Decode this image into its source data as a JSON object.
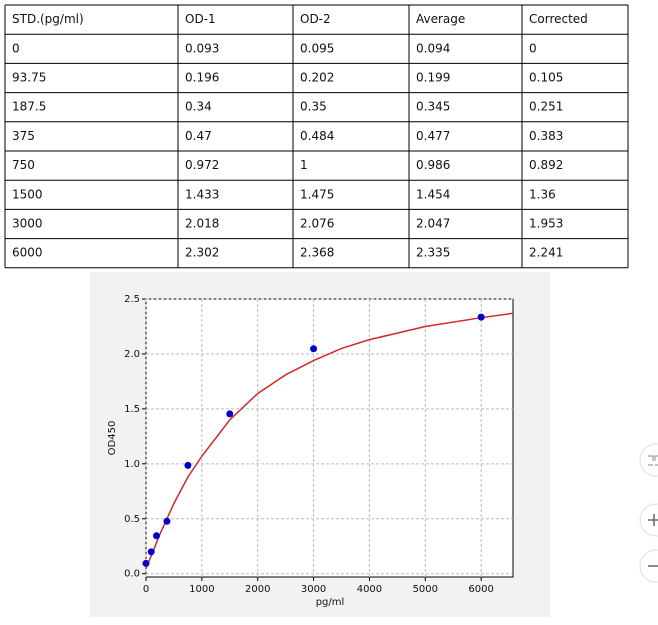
{
  "table": {
    "header": [
      "STD.(pg/ml)",
      "OD-1",
      "OD-2",
      "Average",
      "Corrected"
    ],
    "rows": [
      [
        "0",
        "0.093",
        "0.095",
        "0.094",
        "0"
      ],
      [
        "93.75",
        "0.196",
        "0.202",
        "0.199",
        "0.105"
      ],
      [
        "187.5",
        "0.34",
        "0.35",
        "0.345",
        "0.251"
      ],
      [
        "375",
        "0.47",
        "0.484",
        "0.477",
        "0.383"
      ],
      [
        "750",
        "0.972",
        "1",
        "0.986",
        "0.892"
      ],
      [
        "1500",
        "1.433",
        "1.475",
        "1.454",
        "1.36"
      ],
      [
        "3000",
        "2.018",
        "2.076",
        "2.047",
        "1.953"
      ],
      [
        "6000",
        "2.302",
        "2.368",
        "2.335",
        "2.241"
      ]
    ]
  },
  "chart_data": {
    "type": "scatter",
    "x_label": "pg/ml",
    "y_label": "OD450",
    "series": [
      {
        "type": "scatter",
        "color": "#0000cc",
        "x": [
          0,
          93.75,
          187.5,
          375,
          750,
          1500,
          3000,
          6000
        ],
        "values": [
          0.094,
          0.199,
          0.345,
          0.477,
          0.986,
          1.454,
          2.047,
          2.335
        ]
      },
      {
        "type": "line",
        "color": "#d62728",
        "x": [
          0,
          100,
          250,
          500,
          750,
          1000,
          1500,
          2000,
          2500,
          3000,
          3500,
          4000,
          5000,
          6000,
          6570
        ],
        "values": [
          0.05,
          0.17,
          0.36,
          0.64,
          0.88,
          1.07,
          1.4,
          1.64,
          1.81,
          1.94,
          2.05,
          2.13,
          2.25,
          2.33,
          2.37
        ]
      }
    ],
    "xlim": [
      0,
      6570
    ],
    "ylim": [
      -0.03,
      2.5
    ],
    "xticks": [
      0,
      1000,
      2000,
      3000,
      4000,
      5000,
      6000
    ],
    "yticks": [
      {
        "value": 0,
        "label": "0.0"
      },
      0.5,
      {
        "value": 1,
        "label": "1.0"
      },
      1.5,
      {
        "value": 2,
        "label": "2.0"
      },
      2.5
    ],
    "grid": true
  }
}
